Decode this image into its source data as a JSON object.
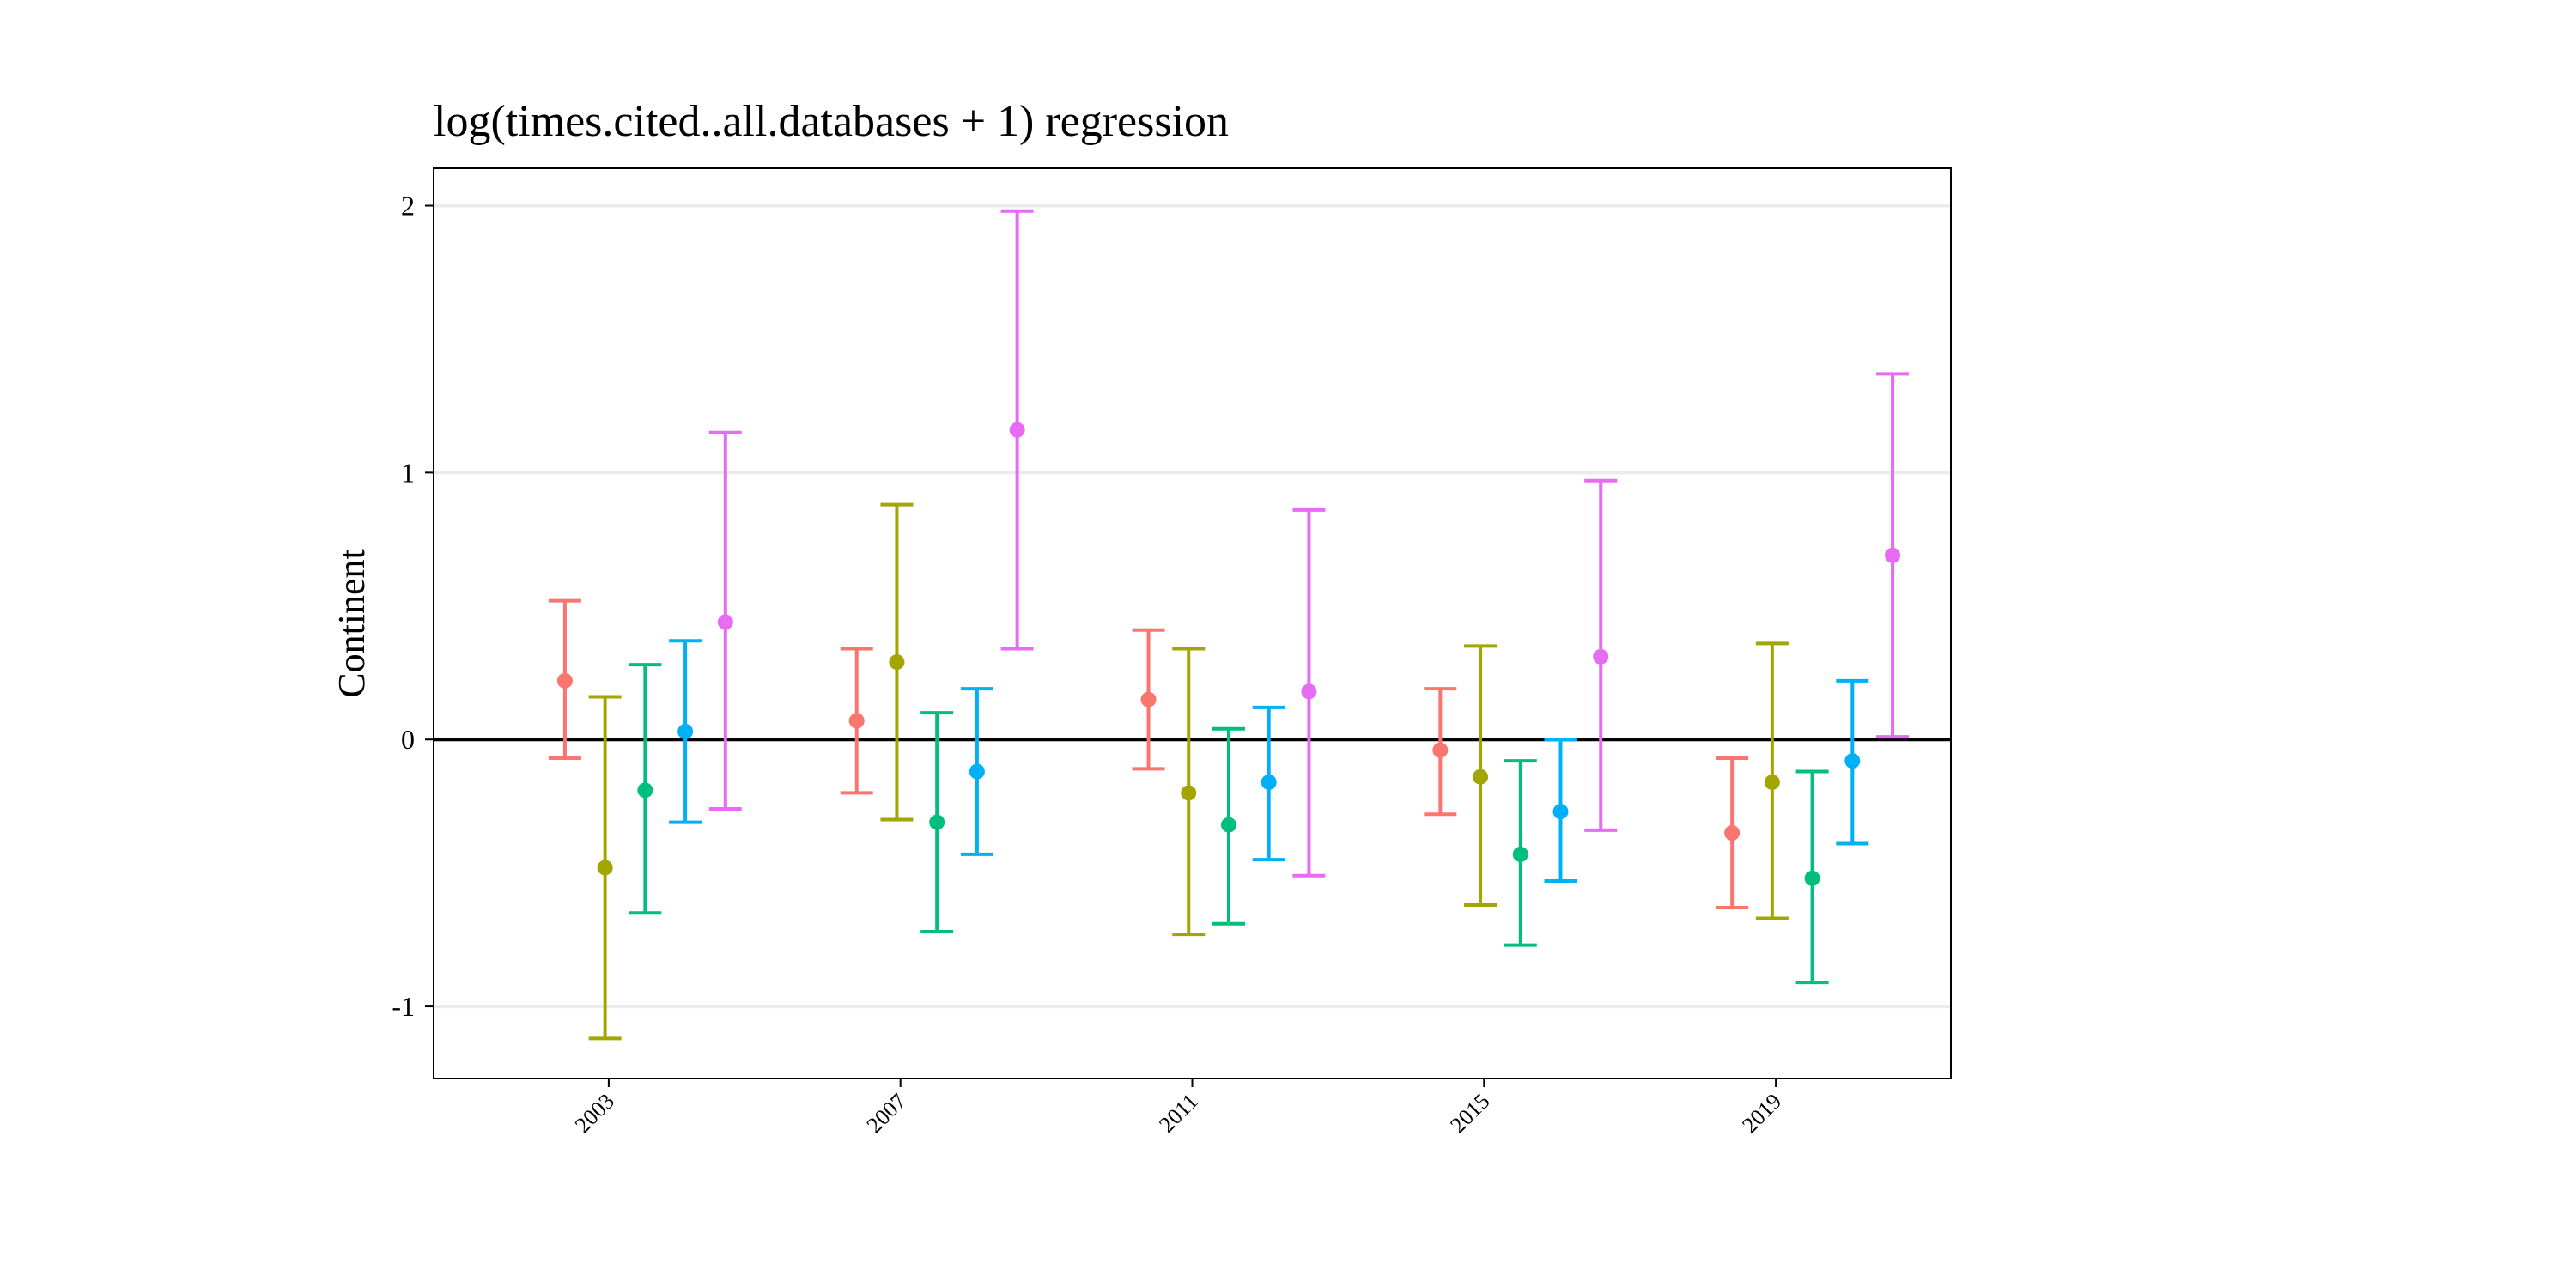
{
  "chart_data": {
    "type": "scatter",
    "title": "log(times.cited..all.databases + 1) regression",
    "xlabel": "",
    "ylabel": "Continent",
    "xlim": [
      2000.6,
      2021.4
    ],
    "ylim": [
      -1.27,
      2.14
    ],
    "x_ticks": [
      2003,
      2007,
      2011,
      2015,
      2019
    ],
    "x_tick_labels": [
      "2003",
      "2007",
      "2011",
      "2015",
      "2019"
    ],
    "y_ticks": [
      -1,
      0,
      1,
      2
    ],
    "y_tick_labels": [
      "-1",
      "0",
      "1",
      "2"
    ],
    "reference_line_y": 0,
    "grid": "horizontal",
    "legend": "none",
    "groups": [
      "2003",
      "2007",
      "2011",
      "2015",
      "2019"
    ],
    "series": [
      {
        "color": "#F8766D",
        "points": [
          {
            "x": 2002.4,
            "y": 0.22,
            "low": -0.07,
            "high": 0.52
          },
          {
            "x": 2006.4,
            "y": 0.07,
            "low": -0.2,
            "high": 0.34
          },
          {
            "x": 2010.4,
            "y": 0.15,
            "low": -0.11,
            "high": 0.41
          },
          {
            "x": 2014.4,
            "y": -0.04,
            "low": -0.28,
            "high": 0.19
          },
          {
            "x": 2018.4,
            "y": -0.35,
            "low": -0.63,
            "high": -0.07
          }
        ]
      },
      {
        "color": "#A3A500",
        "points": [
          {
            "x": 2002.95,
            "y": -0.48,
            "low": -1.12,
            "high": 0.16
          },
          {
            "x": 2006.95,
            "y": 0.29,
            "low": -0.3,
            "high": 0.88
          },
          {
            "x": 2010.95,
            "y": -0.2,
            "low": -0.73,
            "high": 0.34
          },
          {
            "x": 2014.95,
            "y": -0.14,
            "low": -0.62,
            "high": 0.35
          },
          {
            "x": 2018.95,
            "y": -0.16,
            "low": -0.67,
            "high": 0.36
          }
        ]
      },
      {
        "color": "#00BF7D",
        "points": [
          {
            "x": 2003.5,
            "y": -0.19,
            "low": -0.65,
            "high": 0.28
          },
          {
            "x": 2007.5,
            "y": -0.31,
            "low": -0.72,
            "high": 0.1
          },
          {
            "x": 2011.5,
            "y": -0.32,
            "low": -0.69,
            "high": 0.04
          },
          {
            "x": 2015.5,
            "y": -0.43,
            "low": -0.77,
            "high": -0.08
          },
          {
            "x": 2019.5,
            "y": -0.52,
            "low": -0.91,
            "high": -0.12
          }
        ]
      },
      {
        "color": "#00B0F6",
        "points": [
          {
            "x": 2004.05,
            "y": 0.03,
            "low": -0.31,
            "high": 0.37
          },
          {
            "x": 2008.05,
            "y": -0.12,
            "low": -0.43,
            "high": 0.19
          },
          {
            "x": 2012.05,
            "y": -0.16,
            "low": -0.45,
            "high": 0.12
          },
          {
            "x": 2016.05,
            "y": -0.27,
            "low": -0.53,
            "high": 0.0
          },
          {
            "x": 2020.05,
            "y": -0.08,
            "low": -0.39,
            "high": 0.22
          }
        ]
      },
      {
        "color": "#E76BF3",
        "points": [
          {
            "x": 2004.6,
            "y": 0.44,
            "low": -0.26,
            "high": 1.15
          },
          {
            "x": 2008.6,
            "y": 1.16,
            "low": 0.34,
            "high": 1.98
          },
          {
            "x": 2012.6,
            "y": 0.18,
            "low": -0.51,
            "high": 0.86
          },
          {
            "x": 2016.6,
            "y": 0.31,
            "low": -0.34,
            "high": 0.97
          },
          {
            "x": 2020.6,
            "y": 0.69,
            "low": 0.01,
            "high": 1.37
          }
        ]
      }
    ]
  }
}
